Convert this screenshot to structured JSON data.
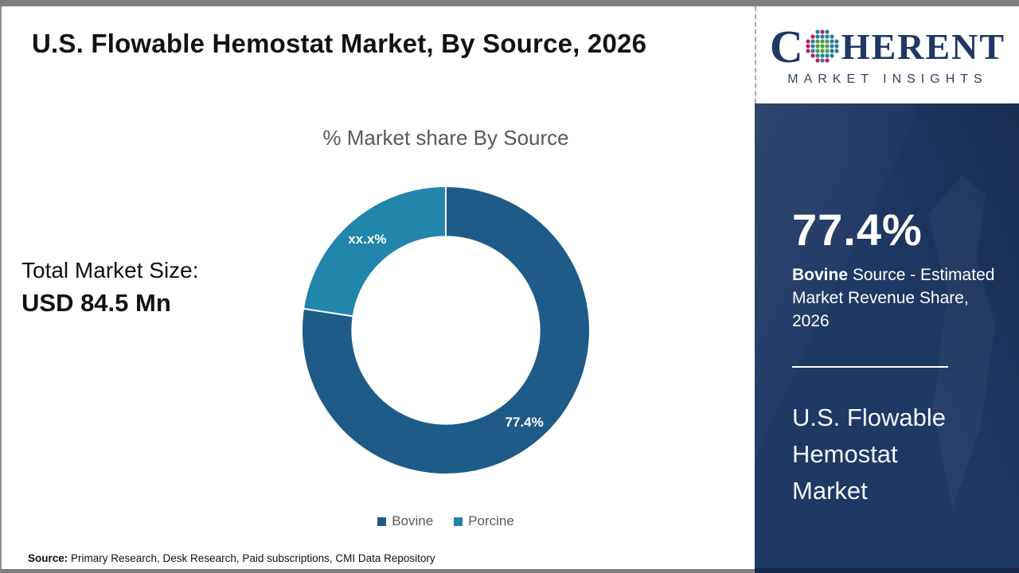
{
  "header": {
    "title": "U.S. Flowable Hemostat Market, By Source, 2026"
  },
  "logo": {
    "name": "Coherent Market Insights",
    "word_start": "C",
    "word_end": "HERENT",
    "subtitle": "MARKET INSIGHTS",
    "navy": "#1F3864",
    "globe_colors": {
      "green": "#4BA145",
      "teal": "#2C7C9E",
      "crimson": "#C01C5C"
    }
  },
  "left_panel": {
    "total_label": "Total Market Size:",
    "total_value": "USD 84.5 Mn"
  },
  "chart_data": {
    "type": "pie",
    "subtype": "donut",
    "title": "% Market share By Source",
    "unit": "%",
    "series": [
      {
        "name": "Bovine",
        "value": 77.4,
        "label": "77.4%",
        "color": "#1E5B88"
      },
      {
        "name": "Porcine",
        "value": 22.6,
        "label": "xx.x%",
        "color": "#2185AC"
      }
    ],
    "start_angle_deg": 0,
    "direction": "clockwise",
    "inner_radius_ratio": 0.65,
    "legend_position": "bottom",
    "label_color": "#FFFFFF"
  },
  "sidebar": {
    "stat_value": "77.4%",
    "stat_desc_bold": "Bovine",
    "stat_desc_rest": " Source - Estimated Market Revenue Share, 2026",
    "market_name": "U.S. Flowable Hemostat Market",
    "bg": "#1F3864"
  },
  "footer": {
    "source_label": "Source:",
    "source_text": " Primary Research, Desk Research, Paid subscriptions, CMI Data Repository"
  }
}
